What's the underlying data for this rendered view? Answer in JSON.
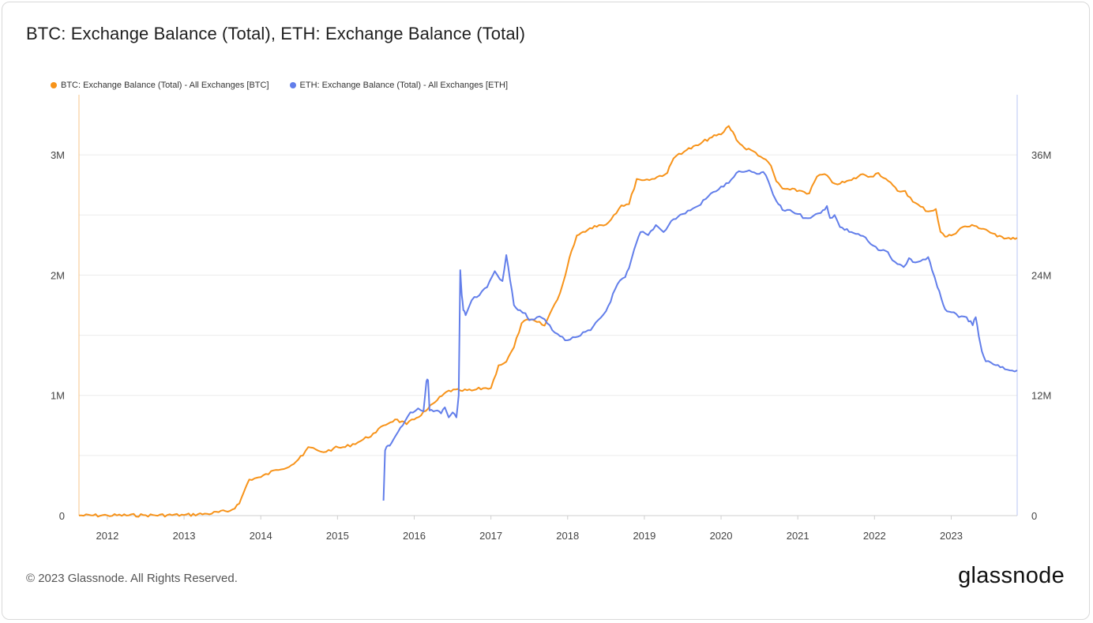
{
  "title": "BTC: Exchange Balance (Total), ETH: Exchange Balance (Total)",
  "footer": "© 2023 Glassnode. All Rights Reserved.",
  "brand": "glassnode",
  "colors": {
    "btc": "#f7931a",
    "eth": "#627eea",
    "grid": "#ececec"
  },
  "chart_data": {
    "type": "line",
    "title": "BTC: Exchange Balance (Total), ETH: Exchange Balance (Total)",
    "grid": true,
    "legend_position": "top-left",
    "x_ticks": [
      "2012",
      "2013",
      "2014",
      "2015",
      "2016",
      "2017",
      "2018",
      "2019",
      "2020",
      "2021",
      "2022",
      "2023"
    ],
    "xlim": [
      2011.63,
      2023.86
    ],
    "y_left": {
      "ticks": [
        0,
        1000000,
        2000000,
        3000000
      ],
      "tick_labels": [
        "0",
        "1M",
        "2M",
        "3M"
      ],
      "ylim": [
        0,
        3500000
      ]
    },
    "y_right": {
      "ticks": [
        0,
        12000000,
        24000000,
        36000000
      ],
      "tick_labels": [
        "0",
        "12M",
        "24M",
        "36M"
      ],
      "ylim": [
        0,
        42000000
      ]
    },
    "series": [
      {
        "name": "BTC: Exchange Balance (Total) - All Exchanges [BTC]",
        "axis": "left",
        "x": [
          2011.63,
          2012.0,
          2012.5,
          2013.0,
          2013.3,
          2013.6,
          2013.72,
          2013.8,
          2013.85,
          2013.92,
          2014.0,
          2014.2,
          2014.4,
          2014.55,
          2014.62,
          2014.75,
          2014.85,
          2014.95,
          2015.1,
          2015.3,
          2015.5,
          2015.6,
          2015.75,
          2015.9,
          2016.0,
          2016.15,
          2016.3,
          2016.45,
          2016.6,
          2016.75,
          2016.9,
          2017.0,
          2017.1,
          2017.2,
          2017.3,
          2017.4,
          2017.5,
          2017.6,
          2017.7,
          2017.8,
          2017.9,
          2017.97,
          2018.05,
          2018.12,
          2018.2,
          2018.35,
          2018.5,
          2018.7,
          2018.8,
          2018.9,
          2019.0,
          2019.1,
          2019.3,
          2019.38,
          2019.45,
          2019.55,
          2019.7,
          2019.85,
          2020.0,
          2020.1,
          2020.18,
          2020.22,
          2020.3,
          2020.45,
          2020.55,
          2020.65,
          2020.72,
          2020.8,
          2020.9,
          2021.05,
          2021.15,
          2021.25,
          2021.35,
          2021.45,
          2021.55,
          2021.7,
          2021.85,
          2021.95,
          2022.05,
          2022.15,
          2022.3,
          2022.4,
          2022.5,
          2022.6,
          2022.7,
          2022.8,
          2022.86,
          2022.92,
          2023.0,
          2023.15,
          2023.3,
          2023.45,
          2023.6,
          2023.75,
          2023.86
        ],
        "values": [
          1000,
          2000,
          3000,
          5000,
          15000,
          40000,
          100000,
          230000,
          300000,
          310000,
          320000,
          380000,
          420000,
          500000,
          570000,
          540000,
          530000,
          560000,
          570000,
          620000,
          690000,
          750000,
          800000,
          760000,
          800000,
          870000,
          960000,
          1040000,
          1040000,
          1040000,
          1060000,
          1060000,
          1250000,
          1280000,
          1400000,
          1600000,
          1630000,
          1610000,
          1580000,
          1720000,
          1850000,
          2000000,
          2200000,
          2330000,
          2360000,
          2410000,
          2420000,
          2580000,
          2590000,
          2800000,
          2790000,
          2800000,
          2850000,
          2970000,
          3010000,
          3040000,
          3080000,
          3140000,
          3170000,
          3240000,
          3160000,
          3110000,
          3060000,
          3020000,
          2970000,
          2910000,
          2780000,
          2720000,
          2710000,
          2700000,
          2680000,
          2820000,
          2840000,
          2770000,
          2760000,
          2790000,
          2840000,
          2820000,
          2850000,
          2800000,
          2700000,
          2700000,
          2610000,
          2570000,
          2530000,
          2550000,
          2360000,
          2320000,
          2330000,
          2400000,
          2410000,
          2380000,
          2320000,
          2310000,
          2310000
        ]
      },
      {
        "name": "ETH: Exchange Balance (Total) - All Exchanges [ETH]",
        "axis": "right",
        "x": [
          2015.6,
          2015.62,
          2015.66,
          2015.7,
          2015.85,
          2015.95,
          2016.05,
          2016.12,
          2016.16,
          2016.18,
          2016.2,
          2016.25,
          2016.3,
          2016.35,
          2016.4,
          2016.45,
          2016.5,
          2016.55,
          2016.58,
          2016.6,
          2016.62,
          2016.64,
          2016.67,
          2016.75,
          2016.85,
          2016.95,
          2017.05,
          2017.15,
          2017.2,
          2017.25,
          2017.3,
          2017.38,
          2017.45,
          2017.5,
          2017.6,
          2017.7,
          2017.8,
          2017.9,
          2018.0,
          2018.1,
          2018.3,
          2018.5,
          2018.65,
          2018.75,
          2018.8,
          2018.9,
          2018.95,
          2019.05,
          2019.15,
          2019.25,
          2019.35,
          2019.5,
          2019.7,
          2019.9,
          2020.1,
          2020.2,
          2020.3,
          2020.4,
          2020.5,
          2020.55,
          2020.62,
          2020.68,
          2020.72,
          2020.8,
          2020.9,
          2021.0,
          2021.1,
          2021.2,
          2021.3,
          2021.38,
          2021.42,
          2021.48,
          2021.55,
          2021.7,
          2021.85,
          2021.95,
          2022.05,
          2022.15,
          2022.2,
          2022.3,
          2022.38,
          2022.45,
          2022.5,
          2022.6,
          2022.7,
          2022.75,
          2022.82,
          2022.87,
          2022.92,
          2023.0,
          2023.1,
          2023.2,
          2023.28,
          2023.32,
          2023.36,
          2023.4,
          2023.45,
          2023.55,
          2023.7,
          2023.86
        ],
        "values": [
          1500000,
          6500000,
          7000000,
          7200000,
          9000000,
          10300000,
          10700000,
          10400000,
          13400000,
          13500000,
          10500000,
          10400000,
          10500000,
          10200000,
          10800000,
          9800000,
          10300000,
          9800000,
          12000000,
          24500000,
          22000000,
          20500000,
          20000000,
          21500000,
          22000000,
          22800000,
          24400000,
          23400000,
          26000000,
          23500000,
          21000000,
          20500000,
          20200000,
          19500000,
          19800000,
          19600000,
          18500000,
          17900000,
          17500000,
          17800000,
          18500000,
          20400000,
          23100000,
          23800000,
          24700000,
          27300000,
          28300000,
          28000000,
          29000000,
          28300000,
          29400000,
          30100000,
          30900000,
          32300000,
          33200000,
          34200000,
          34300000,
          34300000,
          34100000,
          34300000,
          33300000,
          32000000,
          31400000,
          30500000,
          30500000,
          30100000,
          29700000,
          29900000,
          30200000,
          30900000,
          29700000,
          30000000,
          28800000,
          28300000,
          27900000,
          27100000,
          26500000,
          26400000,
          25900000,
          25100000,
          24800000,
          25700000,
          25300000,
          25400000,
          25800000,
          24500000,
          22800000,
          21700000,
          20600000,
          20300000,
          19800000,
          19800000,
          19000000,
          19800000,
          17900000,
          16400000,
          15400000,
          15100000,
          14600000,
          14500000
        ]
      }
    ]
  }
}
